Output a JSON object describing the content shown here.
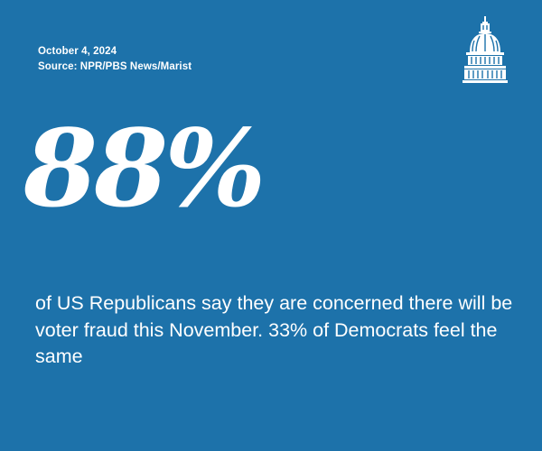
{
  "header": {
    "date": "October 4, 2024",
    "source": "Source: NPR/PBS News/Marist"
  },
  "logo": {
    "icon": "capitol-dome-icon"
  },
  "stat": {
    "value": "88%",
    "description": "of US Republicans say they are concerned there will be voter fraud this November. 33% of Democrats feel the same"
  },
  "colors": {
    "background": "#1d72aa",
    "text": "#ffffff"
  }
}
